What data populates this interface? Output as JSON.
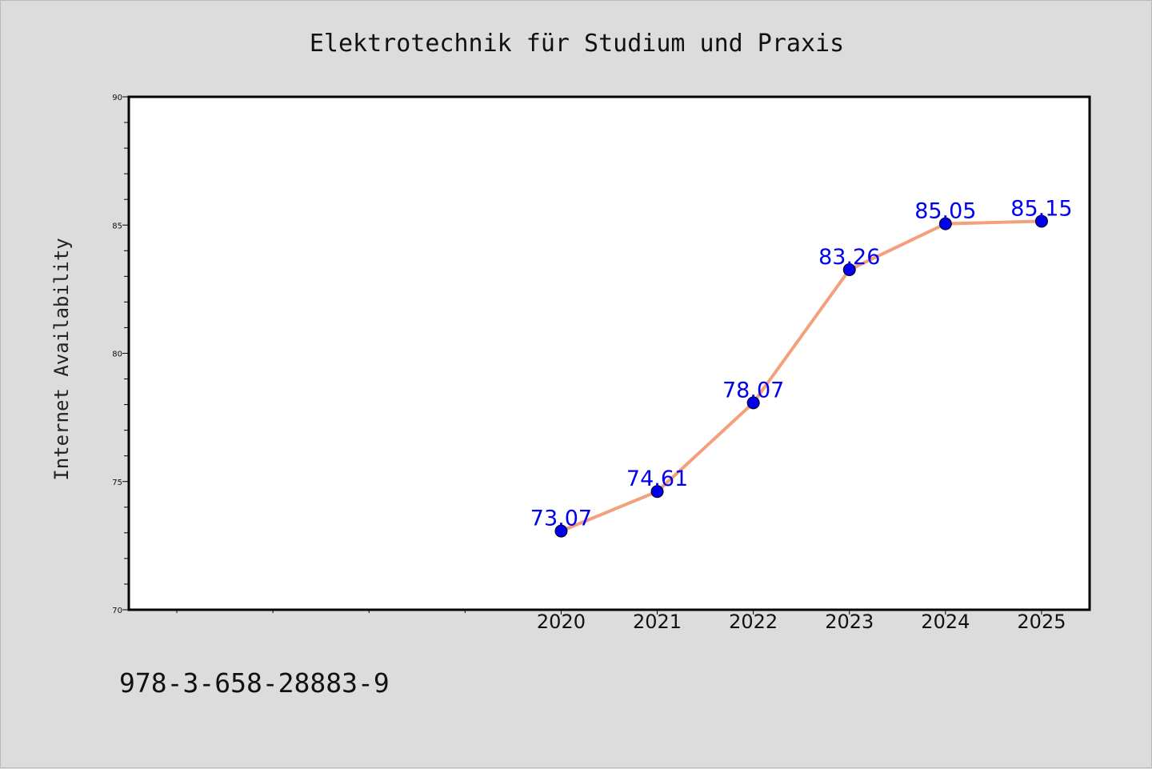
{
  "chart_data": {
    "type": "line",
    "title": "Elektrotechnik für Studium und Praxis",
    "xlabel": "",
    "ylabel": "Internet Availability",
    "x": [
      2020,
      2021,
      2022,
      2023,
      2024,
      2025
    ],
    "xlim": [
      2015.5,
      2025.5
    ],
    "xticks": [
      "2020",
      "2021",
      "2022",
      "2023",
      "2024",
      "2025"
    ],
    "values": [
      73.07,
      74.61,
      78.07,
      83.26,
      85.05,
      85.15
    ],
    "value_labels": [
      "73.07",
      "74.61",
      "78.07",
      "83.26",
      "85.05",
      "85.15"
    ],
    "ylim": [
      70,
      90
    ],
    "yticks": [
      "70",
      "75",
      "80",
      "85",
      "90"
    ],
    "grid": false,
    "legend": "none",
    "colors": {
      "line": "#f4a07c",
      "marker": "#0000ee",
      "label": "#0000ee",
      "plot_background": "#ffffff",
      "figure_background": "#dcdcdc"
    }
  },
  "footer": {
    "isbn": "978-3-658-28883-9"
  }
}
